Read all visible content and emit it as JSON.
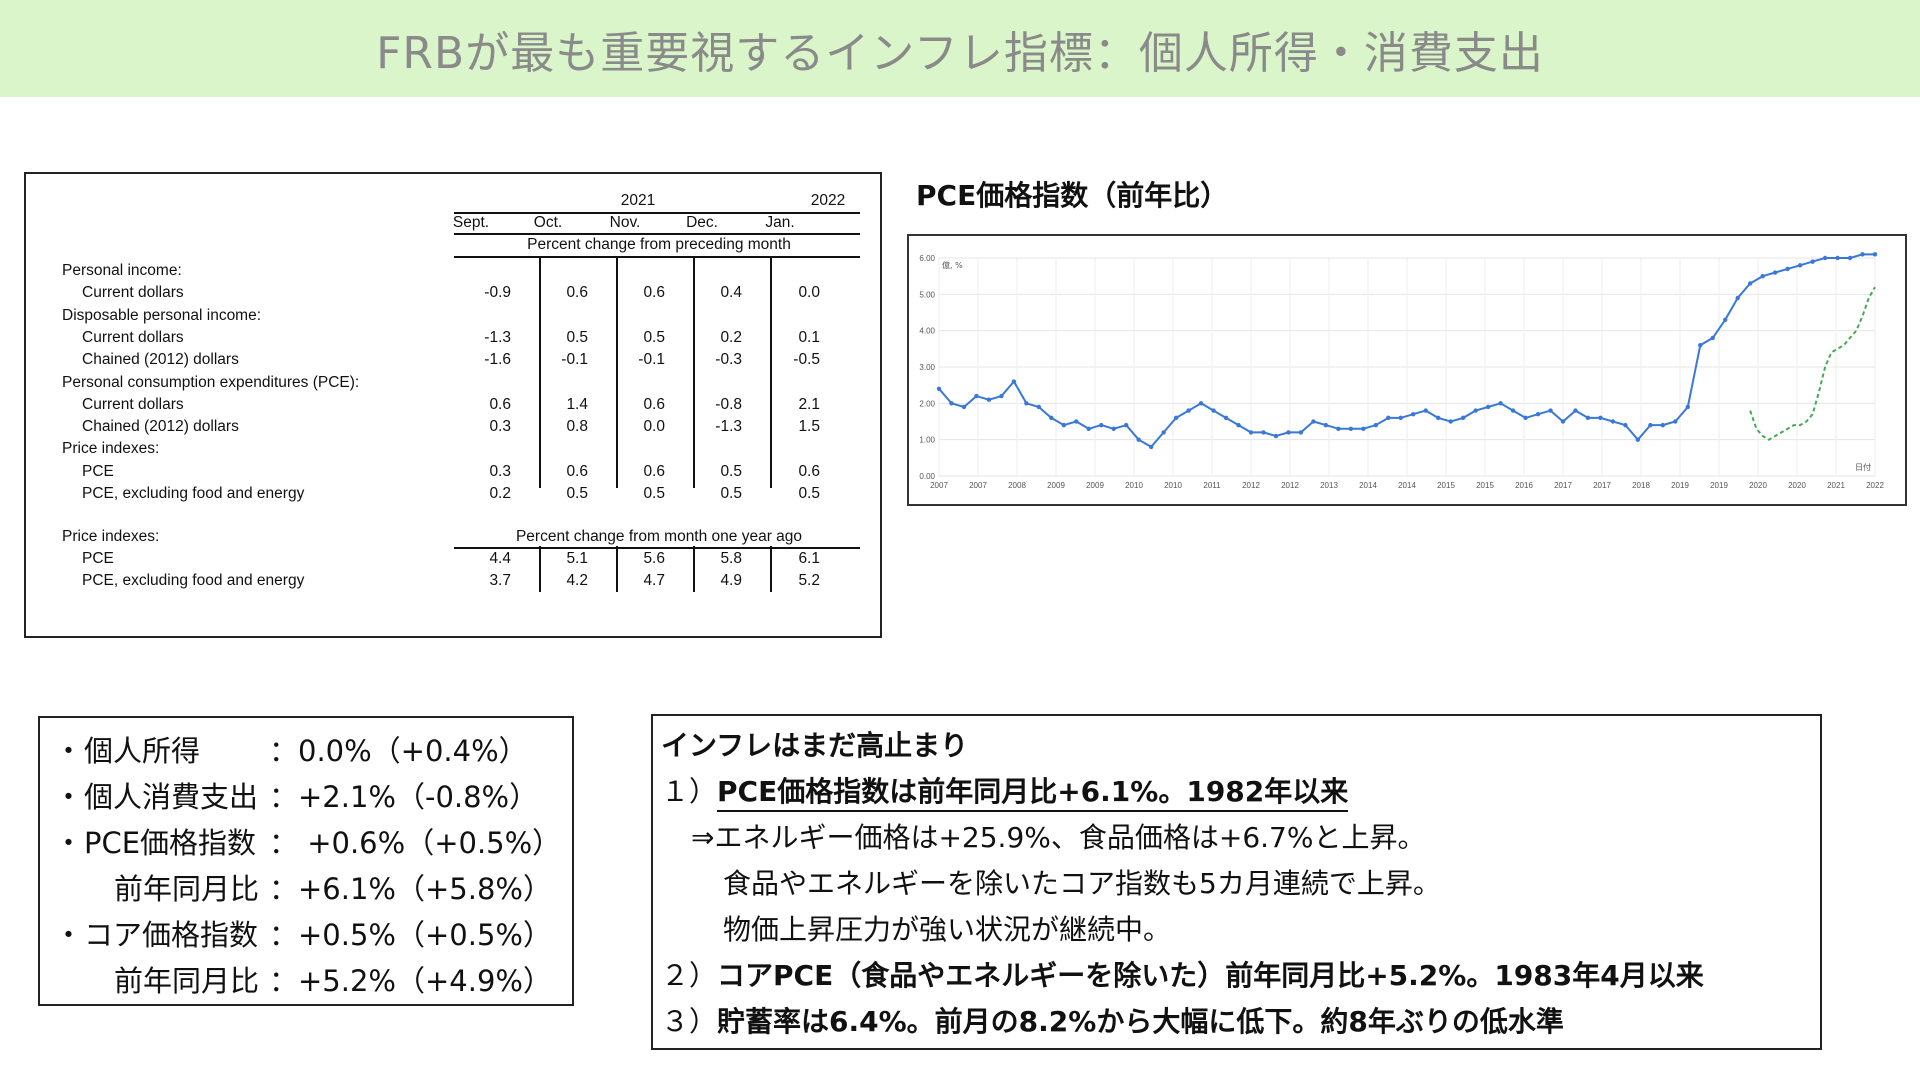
{
  "title": "FRBが最も重要視するインフレ指標：個人所得・消費支出",
  "table": {
    "year_2021": "2021",
    "year_2022": "2022",
    "months": [
      "Sept.",
      "Oct.",
      "Nov.",
      "Dec.",
      "Jan."
    ],
    "subheader_monthly": "Percent change from preceding month",
    "rows": [
      {
        "label": "Personal income:",
        "indent": false,
        "values": []
      },
      {
        "label": "Current dollars",
        "indent": true,
        "values": [
          "-0.9",
          "0.6",
          "0.6",
          "0.4",
          "0.0"
        ]
      },
      {
        "label": "Disposable personal income:",
        "indent": false,
        "values": []
      },
      {
        "label": "Current dollars",
        "indent": true,
        "values": [
          "-1.3",
          "0.5",
          "0.5",
          "0.2",
          "0.1"
        ]
      },
      {
        "label": "Chained (2012) dollars",
        "indent": true,
        "values": [
          "-1.6",
          "-0.1",
          "-0.1",
          "-0.3",
          "-0.5"
        ]
      },
      {
        "label": "Personal consumption expenditures (PCE):",
        "indent": false,
        "values": []
      },
      {
        "label": "Current dollars",
        "indent": true,
        "values": [
          "0.6",
          "1.4",
          "0.6",
          "-0.8",
          "2.1"
        ]
      },
      {
        "label": "Chained (2012) dollars",
        "indent": true,
        "values": [
          "0.3",
          "0.8",
          "0.0",
          "-1.3",
          "1.5"
        ]
      },
      {
        "label": "Price indexes:",
        "indent": false,
        "values": []
      },
      {
        "label": "PCE",
        "indent": true,
        "values": [
          "0.3",
          "0.6",
          "0.6",
          "0.5",
          "0.6"
        ]
      },
      {
        "label": "PCE, excluding food and energy",
        "indent": true,
        "values": [
          "0.2",
          "0.5",
          "0.5",
          "0.5",
          "0.5"
        ]
      }
    ],
    "yoy_section_label": "Price indexes:",
    "subheader_yoy": "Percent change from month one year ago",
    "yoy_rows": [
      {
        "label": "PCE",
        "values": [
          "4.4",
          "5.1",
          "5.6",
          "5.8",
          "6.1"
        ]
      },
      {
        "label": "PCE, excluding food and energy",
        "values": [
          "3.7",
          "4.2",
          "4.7",
          "4.9",
          "5.2"
        ]
      }
    ]
  },
  "chart_title": "PCE価格指数（前年比）",
  "chart_data": {
    "type": "line",
    "y_unit_label": "億, %",
    "x_axis_label": "日付",
    "ylim": [
      0,
      6
    ],
    "y_ticks": [
      "0.00",
      "1.00",
      "2.00",
      "3.00",
      "4.00",
      "5.00",
      "6.00"
    ],
    "x_ticks": [
      "2007",
      "2007",
      "2008",
      "2009",
      "2009",
      "2010",
      "2010",
      "2011",
      "2012",
      "2012",
      "2013",
      "2014",
      "2014",
      "2015",
      "2015",
      "2016",
      "2017",
      "2017",
      "2018",
      "2019",
      "2019",
      "2020",
      "2020",
      "2021",
      "2022"
    ],
    "grid": true,
    "series": [
      {
        "color": "#3a78d8",
        "marker": "dot",
        "x": [
          2007.0,
          2007.2,
          2007.4,
          2007.6,
          2007.8,
          2008.0,
          2008.2,
          2008.4,
          2008.6,
          2008.8,
          2009.0,
          2009.2,
          2009.4,
          2009.6,
          2009.8,
          2010.0,
          2010.2,
          2010.4,
          2010.6,
          2010.8,
          2011.0,
          2011.2,
          2011.4,
          2011.6,
          2011.8,
          2012.0,
          2012.2,
          2012.4,
          2012.6,
          2012.8,
          2013.0,
          2013.2,
          2013.4,
          2013.6,
          2013.8,
          2014.0,
          2014.2,
          2014.4,
          2014.6,
          2014.8,
          2015.0,
          2015.2,
          2015.4,
          2015.6,
          2015.8,
          2016.0,
          2016.2,
          2016.4,
          2016.6,
          2016.8,
          2017.0,
          2017.2,
          2017.4,
          2017.6,
          2017.8,
          2018.0,
          2018.2,
          2018.4,
          2018.6,
          2018.8,
          2019.0,
          2019.2,
          2019.4,
          2019.6,
          2019.8,
          2020.0,
          2020.2,
          2020.4,
          2020.6,
          2020.8,
          2021.0,
          2021.2,
          2021.4,
          2021.6,
          2021.8,
          2022.0
        ],
        "y": [
          2.4,
          2.0,
          1.9,
          2.2,
          2.1,
          2.2,
          2.6,
          2.0,
          1.9,
          1.6,
          1.4,
          1.5,
          1.3,
          1.4,
          1.3,
          1.4,
          1.0,
          0.8,
          1.2,
          1.6,
          1.8,
          2.0,
          1.8,
          1.6,
          1.4,
          1.2,
          1.2,
          1.1,
          1.2,
          1.2,
          1.5,
          1.4,
          1.3,
          1.3,
          1.3,
          1.4,
          1.6,
          1.6,
          1.7,
          1.8,
          1.6,
          1.5,
          1.6,
          1.8,
          1.9,
          2.0,
          1.8,
          1.6,
          1.7,
          1.8,
          1.5,
          1.8,
          1.6,
          1.6,
          1.5,
          1.4,
          1.0,
          1.4,
          1.4,
          1.5,
          1.9,
          3.6,
          3.8,
          4.3,
          4.9,
          5.3,
          5.5,
          5.6,
          5.7,
          5.8,
          5.9,
          6.0,
          6.0,
          6.0,
          6.1,
          6.1
        ]
      },
      {
        "color": "#44aa55",
        "marker": "dashed",
        "x": [
          2020.0,
          2020.1,
          2020.2,
          2020.3,
          2020.4,
          2020.5,
          2020.6,
          2020.7,
          2020.8,
          2020.9,
          2021.0,
          2021.1,
          2021.2,
          2021.3,
          2021.4,
          2021.5,
          2021.6,
          2021.7,
          2021.8,
          2021.9,
          2022.0
        ],
        "y": [
          1.8,
          1.3,
          1.1,
          1.0,
          1.1,
          1.2,
          1.3,
          1.4,
          1.4,
          1.5,
          1.7,
          2.3,
          3.0,
          3.4,
          3.5,
          3.6,
          3.8,
          4.0,
          4.4,
          4.9,
          5.2
        ]
      }
    ]
  },
  "bullets": [
    {
      "bullet": "・",
      "label": "個人所得",
      "value": "：0.0%（+0.4%）"
    },
    {
      "bullet": "・",
      "label": "個人消費支出",
      "value": "：+2.1%（-0.8%）"
    },
    {
      "bullet": "・",
      "label": "PCE価格指数",
      "value": "： +0.6%（+0.5%）"
    },
    {
      "bullet": "",
      "label": "前年同月比",
      "value": "：+6.1%（+5.8%）"
    },
    {
      "bullet": "・",
      "label": "コア価格指数",
      "value": "：+0.5%（+0.5%）"
    },
    {
      "bullet": "",
      "label": "前年同月比",
      "value": "：+5.2%（+4.9%）"
    }
  ],
  "summary": {
    "heading": "インフレはまだ高止まり",
    "item1_num": "１）",
    "item1_text": "PCE価格指数は前年同月比+6.1%。1982年以来",
    "item1_detail1": "⇒エネルギー価格は+25.9%、食品価格は+6.7%と上昇。",
    "item1_detail2": "食品やエネルギーを除いたコア指数も5カ月連続で上昇。",
    "item1_detail3": "物価上昇圧力が強い状況が継続中。",
    "item2_num": "２）",
    "item2_text": "コアPCE（食品やエネルギーを除いた）前年同月比+5.2%。1983年4月以来",
    "item3_num": "３）",
    "item3_text": "貯蓄率は6.4%。前月の8.2%から大幅に低下。約8年ぶりの低水準"
  }
}
